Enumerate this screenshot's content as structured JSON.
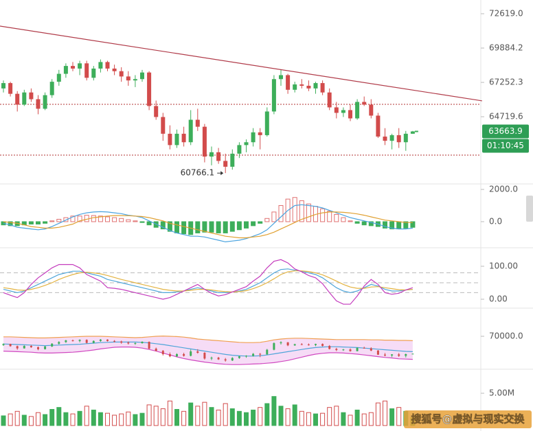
{
  "chart_data": [
    {
      "type": "candlestick",
      "log_scale": true,
      "ylim": [
        60035,
        73742
      ],
      "yticks": [
        {
          "value": 72619,
          "label": "72619.0"
        },
        69884.2,
        67252.3,
        64719.6
      ],
      "up_color": "#3dae5a",
      "down_color": "#d24b4b",
      "ohlc": [
        [
          66800,
          67400,
          66500,
          67200
        ],
        [
          67200,
          67300,
          66200,
          66400
        ],
        [
          66400,
          66600,
          65100,
          65600
        ],
        [
          65600,
          66700,
          65500,
          66500
        ],
        [
          66500,
          66800,
          65800,
          66000
        ],
        [
          66000,
          66300,
          64900,
          65300
        ],
        [
          65300,
          66500,
          65200,
          66300
        ],
        [
          66300,
          67500,
          66100,
          67300
        ],
        [
          67300,
          68200,
          67000,
          67900
        ],
        [
          67900,
          68700,
          67600,
          68500
        ],
        [
          68500,
          68800,
          68100,
          68300
        ],
        [
          68300,
          68900,
          67800,
          68700
        ],
        [
          68700,
          68900,
          67400,
          67600
        ],
        [
          67600,
          68500,
          67400,
          68300
        ],
        [
          68300,
          69000,
          68000,
          68800
        ],
        [
          68800,
          68900,
          68100,
          68300
        ],
        [
          68300,
          68600,
          67800,
          68100
        ],
        [
          68100,
          68400,
          67300,
          67700
        ],
        [
          67700,
          68100,
          67000,
          67400
        ],
        [
          67400,
          67800,
          66900,
          67500
        ],
        [
          67500,
          68200,
          67300,
          68000
        ],
        [
          68000,
          68100,
          65200,
          65500
        ],
        [
          65500,
          65900,
          64500,
          64700
        ],
        [
          64700,
          65000,
          63000,
          63500
        ],
        [
          63500,
          64100,
          62400,
          62700
        ],
        [
          62700,
          63800,
          62500,
          63500
        ],
        [
          63500,
          64000,
          62600,
          62900
        ],
        [
          62900,
          65200,
          62700,
          64500
        ],
        [
          64500,
          65300,
          63700,
          64000
        ],
        [
          64000,
          64200,
          61500,
          61900
        ],
        [
          61900,
          62600,
          61300,
          62200
        ],
        [
          62200,
          62500,
          61400,
          61600
        ],
        [
          61600,
          62100,
          60766.1,
          61200
        ],
        [
          61200,
          62400,
          61000,
          62100
        ],
        [
          62100,
          62900,
          61800,
          62700
        ],
        [
          62700,
          63100,
          62200,
          62900
        ],
        [
          62900,
          63900,
          62600,
          63600
        ],
        [
          63600,
          63900,
          62400,
          63400
        ],
        [
          63400,
          65400,
          63300,
          65100
        ],
        [
          65100,
          67800,
          64900,
          67500
        ],
        [
          67500,
          68200,
          67000,
          67800
        ],
        [
          67800,
          67900,
          66400,
          66700
        ],
        [
          66700,
          67300,
          66500,
          67100
        ],
        [
          67100,
          67500,
          66800,
          67000
        ],
        [
          67000,
          67400,
          66600,
          66800
        ],
        [
          66800,
          67300,
          66400,
          67200
        ],
        [
          67200,
          67400,
          66300,
          66500
        ],
        [
          66500,
          66800,
          65200,
          65400
        ],
        [
          65400,
          65800,
          64600,
          65000
        ],
        [
          65000,
          65400,
          64700,
          65200
        ],
        [
          65200,
          65600,
          64400,
          64600
        ],
        [
          64600,
          66000,
          64500,
          65800
        ],
        [
          65800,
          66200,
          65500,
          65600
        ],
        [
          65600,
          66000,
          64600,
          64800
        ],
        [
          64800,
          65000,
          63200,
          63300
        ],
        [
          63300,
          63900,
          62700,
          63000
        ],
        [
          63000,
          63500,
          62400,
          63400
        ],
        [
          63400,
          63900,
          62500,
          62900
        ],
        [
          62900,
          63700,
          62300,
          63500
        ],
        [
          63500,
          63700,
          63500,
          63663.9
        ]
      ],
      "hlines": [
        65623,
        62004
      ],
      "hline_color": "#b03030",
      "trendline": {
        "x": [
          -0.5,
          69
        ],
        "values": [
          71623,
          65880
        ],
        "color": "#b03a48"
      },
      "low_marker": 60766.1,
      "low_index": 32,
      "last_price": 63663.9,
      "countdown": "01:10:45",
      "tag_color": "#2e9e55"
    },
    {
      "type": "macd",
      "ylim": [
        -1574,
        2255
      ],
      "yticks": [
        {
          "value": 2000,
          "label": "2000.0"
        },
        {
          "value": 0,
          "label": "0.0"
        }
      ],
      "histogram": [
        -200,
        -250,
        -250,
        -200,
        -150,
        -150,
        -100,
        50,
        150,
        250,
        350,
        350,
        400,
        380,
        350,
        300,
        250,
        200,
        120,
        50,
        -50,
        -200,
        -350,
        -450,
        -600,
        -700,
        -750,
        -800,
        -700,
        -650,
        -650,
        -700,
        -700,
        -600,
        -500,
        -400,
        -250,
        -100,
        200,
        600,
        1000,
        1400,
        1500,
        1300,
        1100,
        950,
        800,
        650,
        450,
        250,
        50,
        -100,
        -200,
        -250,
        -300,
        -400,
        -450,
        -450,
        -400,
        -350
      ],
      "series": [
        {
          "color": "#4aa3df",
          "values": [
            -100,
            -200,
            -350,
            -400,
            -450,
            -500,
            -450,
            -300,
            -100,
            100,
            300,
            450,
            550,
            600,
            620,
            600,
            550,
            500,
            400,
            350,
            250,
            50,
            -150,
            -350,
            -550,
            -700,
            -800,
            -900,
            -900,
            -950,
            -1050,
            -1150,
            -1250,
            -1200,
            -1150,
            -1050,
            -900,
            -750,
            -500,
            -100,
            300,
            700,
            1000,
            1050,
            1000,
            950,
            850,
            700,
            550,
            400,
            250,
            150,
            50,
            -50,
            -150,
            -300,
            -400,
            -450,
            -450,
            -400
          ]
        },
        {
          "color": "#e0a030",
          "values": [
            0,
            -50,
            -100,
            -200,
            -300,
            -350,
            -400,
            -400,
            -350,
            -250,
            -150,
            50,
            150,
            250,
            300,
            350,
            380,
            380,
            370,
            350,
            320,
            250,
            150,
            50,
            -100,
            -200,
            -300,
            -400,
            -500,
            -600,
            -700,
            -800,
            -900,
            -950,
            -1000,
            -1000,
            -950,
            -900,
            -800,
            -650,
            -450,
            -250,
            -50,
            150,
            300,
            450,
            550,
            600,
            600,
            580,
            540,
            480,
            400,
            300,
            200,
            100,
            50,
            0,
            -50,
            -50
          ]
        }
      ],
      "up_color": "#e07070",
      "down_color": "#3dae5a"
    },
    {
      "type": "oscillator",
      "ylim": [
        -25,
        154
      ],
      "yticks": [
        {
          "value": 100,
          "label": "100.00"
        },
        {
          "value": 0,
          "label": "0.00"
        }
      ],
      "reference_lines": [
        80,
        50,
        20
      ],
      "series": [
        {
          "color": "#4ea5d9",
          "values": [
            30,
            25,
            20,
            25,
            35,
            45,
            55,
            65,
            75,
            80,
            85,
            85,
            80,
            75,
            70,
            60,
            55,
            50,
            45,
            40,
            35,
            30,
            25,
            20,
            20,
            22,
            25,
            30,
            35,
            30,
            25,
            20,
            20,
            22,
            25,
            30,
            40,
            50,
            65,
            80,
            90,
            92,
            88,
            85,
            80,
            75,
            65,
            50,
            35,
            25,
            20,
            25,
            35,
            45,
            40,
            30,
            25,
            25,
            28,
            30
          ]
        },
        {
          "color": "#e3b341",
          "values": [
            35,
            32,
            28,
            27,
            30,
            35,
            42,
            50,
            60,
            68,
            75,
            80,
            82,
            80,
            77,
            72,
            66,
            60,
            55,
            50,
            45,
            40,
            35,
            30,
            27,
            25,
            25,
            27,
            30,
            30,
            28,
            25,
            23,
            22,
            23,
            26,
            32,
            40,
            50,
            62,
            75,
            83,
            86,
            86,
            84,
            80,
            74,
            65,
            55,
            45,
            37,
            33,
            33,
            37,
            38,
            35,
            32,
            29,
            28,
            30
          ]
        },
        {
          "color": "#c43bbd",
          "values": [
            20,
            12,
            5,
            20,
            45,
            65,
            80,
            95,
            105,
            105,
            105,
            95,
            75,
            65,
            55,
            35,
            33,
            30,
            25,
            20,
            15,
            10,
            5,
            0,
            5,
            15,
            25,
            35,
            45,
            30,
            18,
            10,
            14,
            22,
            30,
            38,
            55,
            70,
            95,
            115,
            120,
            110,
            92,
            83,
            72,
            65,
            47,
            20,
            -5,
            -15,
            -15,
            10,
            40,
            60,
            45,
            20,
            15,
            18,
            28,
            35
          ]
        }
      ]
    },
    {
      "type": "bollinger",
      "ylim": [
        58750,
        80000
      ],
      "yticks": [
        {
          "value": 70000,
          "label": "70000.0"
        }
      ],
      "fill": "#f6dcf6",
      "series": [
        {
          "color": "#f0a050",
          "values": [
            69800,
            69800,
            69700,
            69600,
            69500,
            69400,
            69400,
            69500,
            69600,
            69700,
            69800,
            69900,
            70000,
            70000,
            70000,
            69900,
            69800,
            69700,
            69600,
            69500,
            69600,
            69800,
            70000,
            70100,
            70000,
            69900,
            69700,
            69400,
            69000,
            68800,
            68600,
            68400,
            68200,
            68000,
            67800,
            67700,
            67700,
            67800,
            68200,
            68700,
            69000,
            69200,
            69300,
            69300,
            69200,
            69100,
            69000,
            68900,
            68800,
            68800,
            68800,
            68800,
            68800,
            68700,
            68700,
            68600,
            68600,
            68500,
            68500,
            68400
          ]
        },
        {
          "color": "#4ea5d9",
          "values": [
            67200,
            67100,
            67000,
            66900,
            66800,
            66700,
            66600,
            66700,
            66800,
            66900,
            67000,
            67100,
            67300,
            67500,
            67700,
            67800,
            67900,
            67900,
            67900,
            67900,
            67800,
            67600,
            67300,
            67000,
            66600,
            66200,
            65800,
            65400,
            65000,
            64600,
            64200,
            63800,
            63400,
            63100,
            62900,
            62800,
            62800,
            62900,
            63200,
            63600,
            64000,
            64400,
            64800,
            65200,
            65600,
            65900,
            66100,
            66200,
            66200,
            66100,
            66000,
            65900,
            65700,
            65500,
            65300,
            65100,
            64900,
            64700,
            64500,
            64400
          ]
        },
        {
          "color": "#d048c0",
          "values": [
            64600,
            64500,
            64400,
            64300,
            64200,
            64000,
            63900,
            63900,
            64000,
            64100,
            64200,
            64400,
            64700,
            65000,
            65400,
            65700,
            66000,
            66100,
            66100,
            66000,
            65700,
            65200,
            64600,
            63900,
            63200,
            62500,
            61900,
            61400,
            61000,
            60600,
            60300,
            60000,
            59800,
            59700,
            59700,
            59800,
            59900,
            60000,
            60200,
            60400,
            60800,
            61200,
            61800,
            62400,
            63000,
            63500,
            63800,
            64000,
            64000,
            63900,
            63700,
            63500,
            63200,
            62900,
            62600,
            62300,
            62100,
            61800,
            61700,
            61600
          ]
        }
      ]
    },
    {
      "type": "volume",
      "ylim": [
        0,
        8510000
      ],
      "yticks": [
        {
          "value": 5000000,
          "label": "5.00M"
        }
      ],
      "values": [
        1500000,
        1800000,
        2200000,
        1600000,
        1400000,
        2000000,
        1700000,
        2500000,
        2800000,
        2000000,
        1800000,
        2200000,
        3000000,
        2400000,
        2000000,
        1900000,
        1600000,
        1800000,
        2100000,
        1700000,
        1900000,
        3200000,
        3000000,
        2600000,
        3800000,
        2500000,
        2200000,
        3500000,
        3000000,
        3600000,
        2800000,
        2400000,
        3400000,
        2600000,
        2200000,
        2000000,
        2400000,
        2800000,
        3400000,
        4500000,
        3000000,
        2600000,
        3200000,
        2200000,
        2000000,
        1800000,
        1900000,
        2800000,
        3000000,
        2000000,
        1600000,
        2400000,
        1800000,
        2000000,
        3500000,
        3800000,
        2600000,
        2800000,
        2200000,
        1200000
      ]
    }
  ],
  "watermark": "搜狐号@虚拟与现实交换"
}
